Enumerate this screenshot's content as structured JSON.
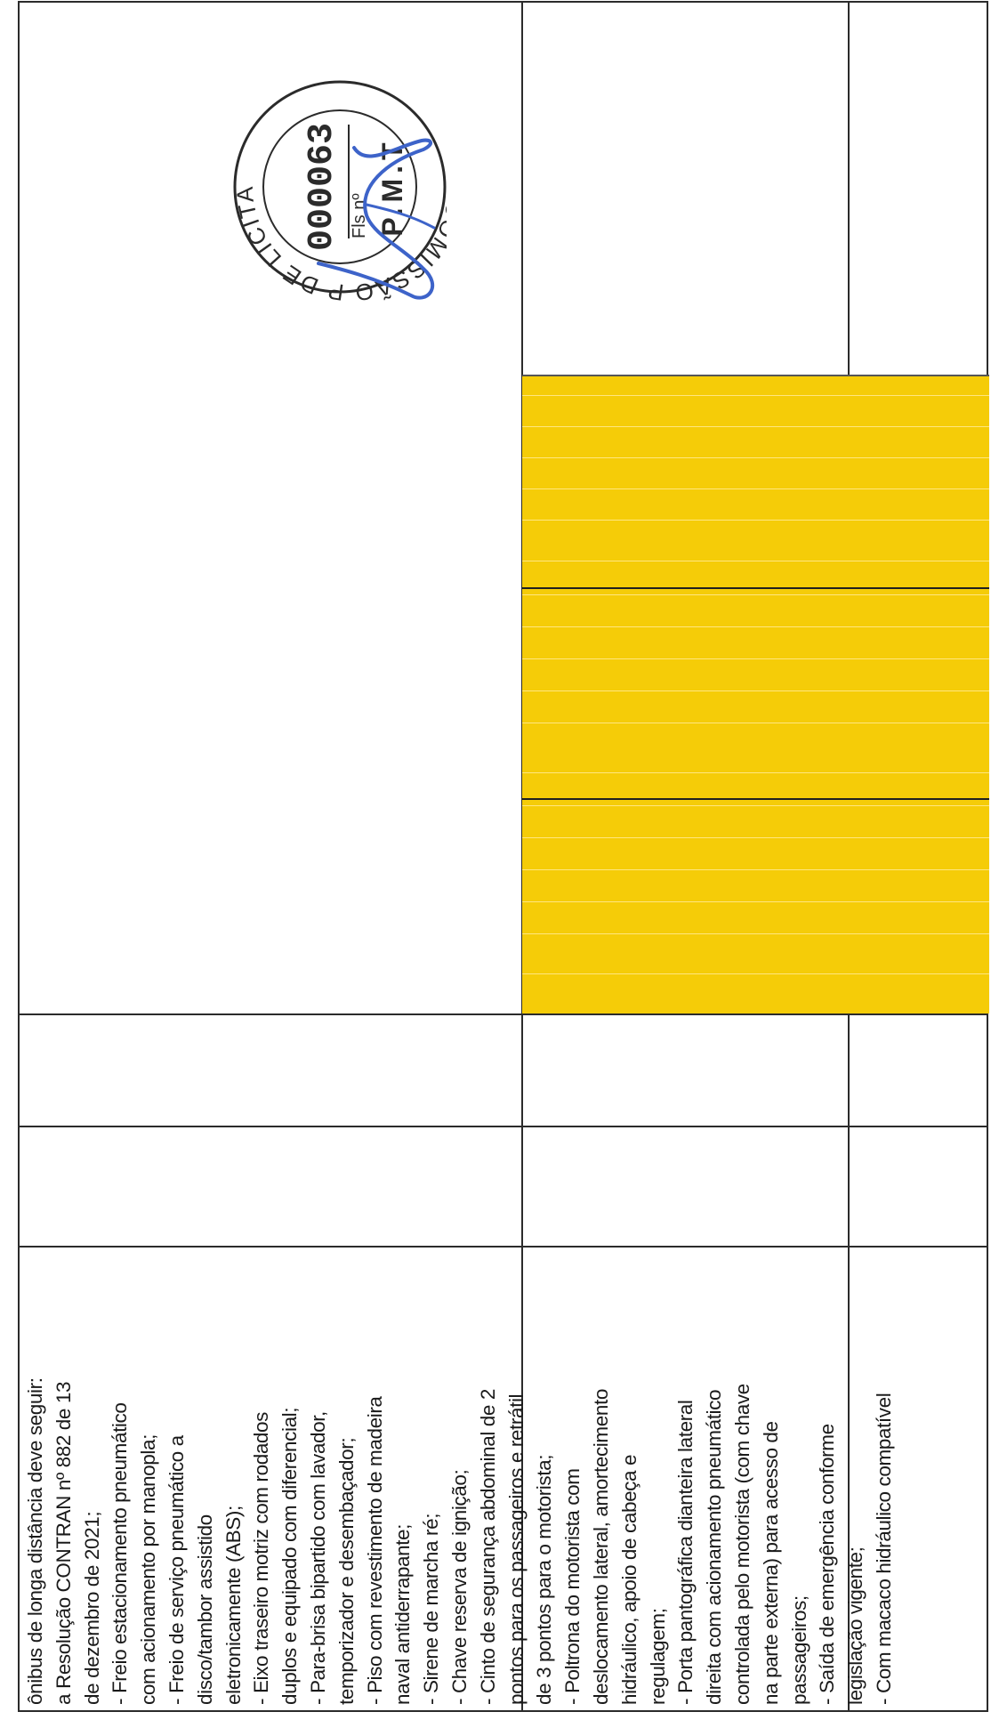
{
  "document": {
    "lines": [
      "ônibus de longa distância deve seguir:",
      "a Resolução CONTRAN nº 882 de 13",
      "de dezembro de 2021;",
      "- Freio estacionamento pneumático",
      "com acionamento por manopla;",
      "- Freio de serviço pneumático a",
      "disco/tambor assistido",
      "eletronicamente (ABS);",
      "- Eixo traseiro motriz com rodados",
      "duplos e equipado com diferencial;",
      "- Para-brisa bipartido com lavador,",
      "temporizador e desembaçador;",
      "- Piso com revestimento de madeira",
      "naval antiderrapante;",
      "- Sirene de marcha ré;",
      "- Chave reserva de ignição;",
      "- Cinto de segurança abdominal de 2",
      "pontos para os passageiros e retrátil",
      "de 3 pontos para o motorista;",
      "- Poltrona do motorista com",
      "deslocamento lateral, amortecimento",
      "hidráulico, apoio de cabeça e",
      "regulagem;",
      "- Porta pantográfica dianteira lateral",
      "direita com acionamento pneumático",
      "controlada pelo motorista (com chave",
      "na parte externa) para acesso de",
      "passageiros;",
      "- Saída de emergência conforme",
      "legislação vigente;",
      "- Com macaco hidráulico compatível"
    ]
  },
  "stamp": {
    "ring_text": "COMISSÃO P DE LICITAÇÃO",
    "number": "000063",
    "fls_label": "Fls nº",
    "entity": "P.M.T",
    "ink_color": "#2b2b2b",
    "signature_color": "#3d63c9"
  },
  "colors": {
    "highlight": "#f5cc08",
    "rule": "#2b2b2b"
  }
}
